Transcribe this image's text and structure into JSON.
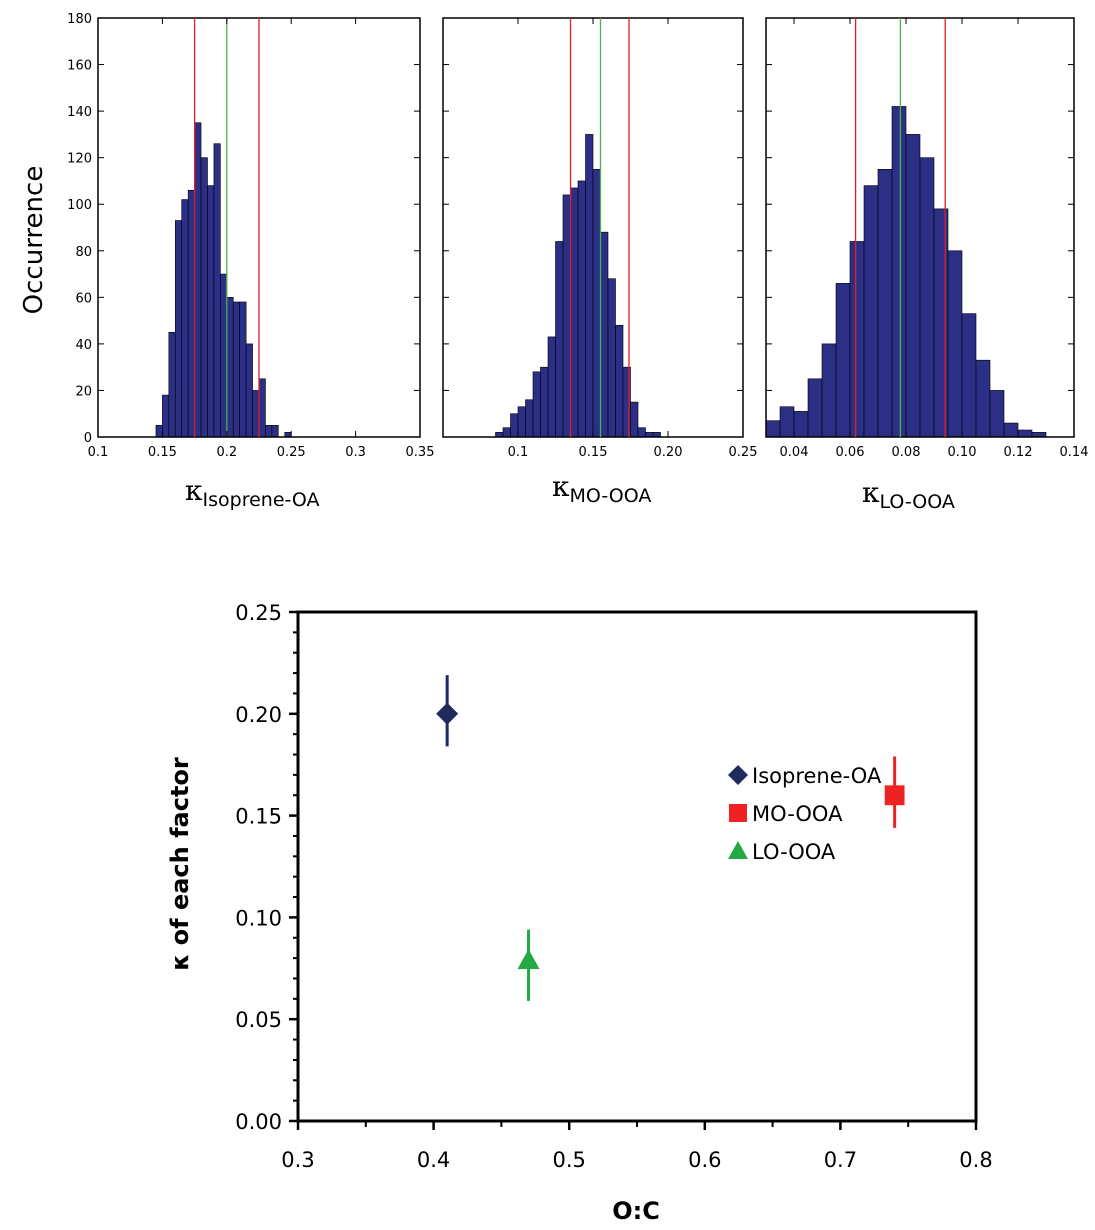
{
  "chart_data": [
    {
      "type": "bar",
      "subtype": "histogram",
      "panel": "isoprene-oa",
      "ylabel": "Occurrence",
      "xlabel_symbol": "κ",
      "xlabel_subscript": "Isoprene-OA",
      "xlim": [
        0.1,
        0.35
      ],
      "ylim": [
        0,
        180
      ],
      "xticks": [
        "0.1",
        "0.15",
        "0.2",
        "0.25",
        "0.3",
        "0.35"
      ],
      "yticks": [
        "0",
        "20",
        "40",
        "60",
        "80",
        "100",
        "120",
        "140",
        "160",
        "180"
      ],
      "bin_start": 0.145,
      "bin_width": 0.005,
      "values": [
        5,
        18,
        45,
        93,
        102,
        106,
        135,
        120,
        108,
        126,
        70,
        60,
        58,
        58,
        40,
        20,
        25,
        5,
        5,
        0,
        2
      ],
      "median": 0.2,
      "bounds": [
        0.175,
        0.225
      ],
      "colors": {
        "bar": "#2b2f86",
        "median": "#4cb34c",
        "bounds": "#e02020"
      }
    },
    {
      "type": "bar",
      "subtype": "histogram",
      "panel": "mo-ooa",
      "xlabel_symbol": "κ",
      "xlabel_subscript": "MO-OOA",
      "xlim": [
        0.05,
        0.25
      ],
      "ylim": [
        0,
        180
      ],
      "xticks": [
        "0.1",
        "0.15",
        "0.20",
        "0.25"
      ],
      "yticks": [],
      "bin_start": 0.085,
      "bin_width": 0.005,
      "values": [
        2,
        4,
        10,
        13,
        16,
        28,
        30,
        43,
        84,
        104,
        107,
        110,
        130,
        115,
        88,
        68,
        48,
        30,
        15,
        4,
        2,
        2
      ],
      "median": 0.155,
      "bounds": [
        0.135,
        0.174
      ],
      "colors": {
        "bar": "#2b2f86",
        "median": "#4cb34c",
        "bounds": "#e02020"
      }
    },
    {
      "type": "bar",
      "subtype": "histogram",
      "panel": "lo-ooa",
      "xlabel_symbol": "κ",
      "xlabel_subscript": "LO-OOA",
      "xlim": [
        0.03,
        0.14
      ],
      "ylim": [
        0,
        180
      ],
      "xticks": [
        "0.04",
        "0.06",
        "0.08",
        "0.10",
        "0.12",
        "0.14"
      ],
      "yticks": [],
      "bin_start": 0.03,
      "bin_width": 0.005,
      "values": [
        7,
        13,
        11,
        25,
        40,
        66,
        84,
        108,
        115,
        142,
        130,
        120,
        98,
        80,
        53,
        33,
        20,
        6,
        3,
        2
      ],
      "median": 0.078,
      "bounds": [
        0.062,
        0.094
      ],
      "colors": {
        "bar": "#2b2f86",
        "median": "#4cb34c",
        "bounds": "#e02020"
      }
    },
    {
      "type": "scatter",
      "panel": "kappa-vs-oc",
      "xlabel": "O:C",
      "ylabel": "κ of each factor",
      "xlim": [
        0.3,
        0.8
      ],
      "ylim": [
        0.0,
        0.25
      ],
      "xticks": [
        "0.3",
        "0.4",
        "0.5",
        "0.6",
        "0.7",
        "0.8"
      ],
      "yticks": [
        "0.00",
        "0.05",
        "0.10",
        "0.15",
        "0.20",
        "0.25"
      ],
      "legend_position": "lower-right",
      "series": [
        {
          "name": "Isoprene-OA",
          "marker": "diamond",
          "color": "#1f2a5e",
          "x": 0.41,
          "y": 0.2,
          "y_err": [
            0.184,
            0.219
          ]
        },
        {
          "name": "MO-OOA",
          "marker": "square",
          "color": "#ee2222",
          "x": 0.74,
          "y": 0.16,
          "y_err": [
            0.144,
            0.179
          ]
        },
        {
          "name": "LO-OOA",
          "marker": "triangle",
          "color": "#22aa44",
          "x": 0.47,
          "y": 0.079,
          "y_err": [
            0.059,
            0.094
          ]
        }
      ]
    }
  ]
}
